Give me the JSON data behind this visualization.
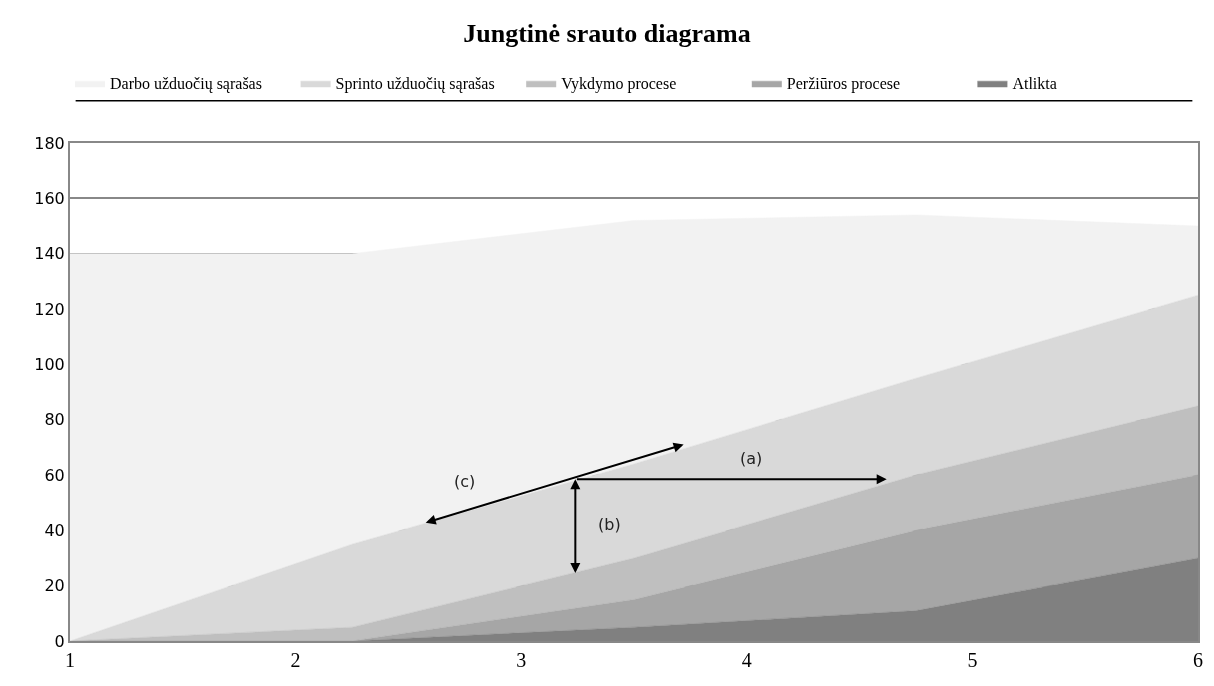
{
  "chart_data": {
    "type": "area",
    "title": "Jungtinė srauto diagrama",
    "stacked": true,
    "x": [
      1,
      2.25,
      3.5,
      4.75,
      6
    ],
    "series": [
      {
        "name": "Atlikta",
        "color": "#808080",
        "values": [
          0,
          0,
          5,
          11,
          30
        ]
      },
      {
        "name": "Peržiūros procese",
        "color": "#a6a6a6",
        "values": [
          0,
          0,
          10,
          29,
          30
        ]
      },
      {
        "name": "Vykdymo procese",
        "color": "#bfbfbf",
        "values": [
          0,
          5,
          15,
          20,
          25
        ]
      },
      {
        "name": "Sprinto užduočių sąrašas",
        "color": "#d9d9d9",
        "values": [
          0,
          30,
          34,
          35,
          40
        ]
      },
      {
        "name": "Darbo užduočių sąrašas",
        "color": "#f2f2f2",
        "values": [
          140,
          105,
          88,
          59,
          25
        ]
      }
    ],
    "xlim": [
      1,
      6
    ],
    "xticks": [
      1,
      2,
      3,
      4,
      5,
      6
    ],
    "ylim": [
      0,
      180
    ],
    "yticks": [
      0,
      20,
      40,
      60,
      80,
      100,
      120,
      140,
      160,
      180
    ],
    "grid": "y",
    "legend": "top",
    "annotations": [
      "(a)",
      "(b)",
      "(c)"
    ]
  }
}
